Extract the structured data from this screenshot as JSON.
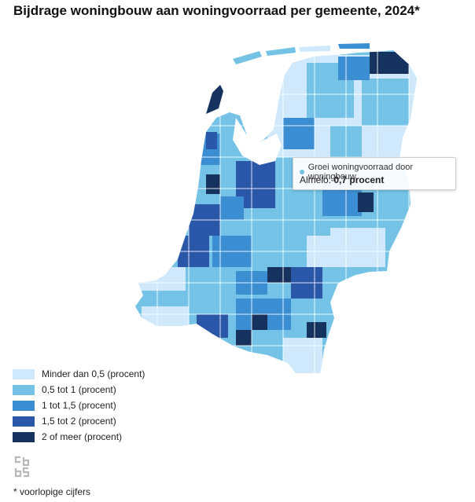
{
  "title": "Bijdrage woningbouw aan woningvoorraad per gemeente, 2024*",
  "legend": [
    {
      "label": "Minder dan 0,5 (procent)",
      "color": "#cfe8fb"
    },
    {
      "label": "0,5 tot 1 (procent)",
      "color": "#74c2e6"
    },
    {
      "label": "1 tot 1,5 (procent)",
      "color": "#3c8ed3"
    },
    {
      "label": "1,5 tot 2 (procent)",
      "color": "#2a57a8"
    },
    {
      "label": "2 of meer (procent)",
      "color": "#16325e"
    }
  ],
  "tooltip": {
    "series": "Groei woningvoorraad door woningbouw",
    "municipality": "Almelo:",
    "value": "0,7 procent",
    "dot_color": "#74c2e6"
  },
  "footnote": "* voorlopige cijfers",
  "logo": "cbs-logo-icon"
}
